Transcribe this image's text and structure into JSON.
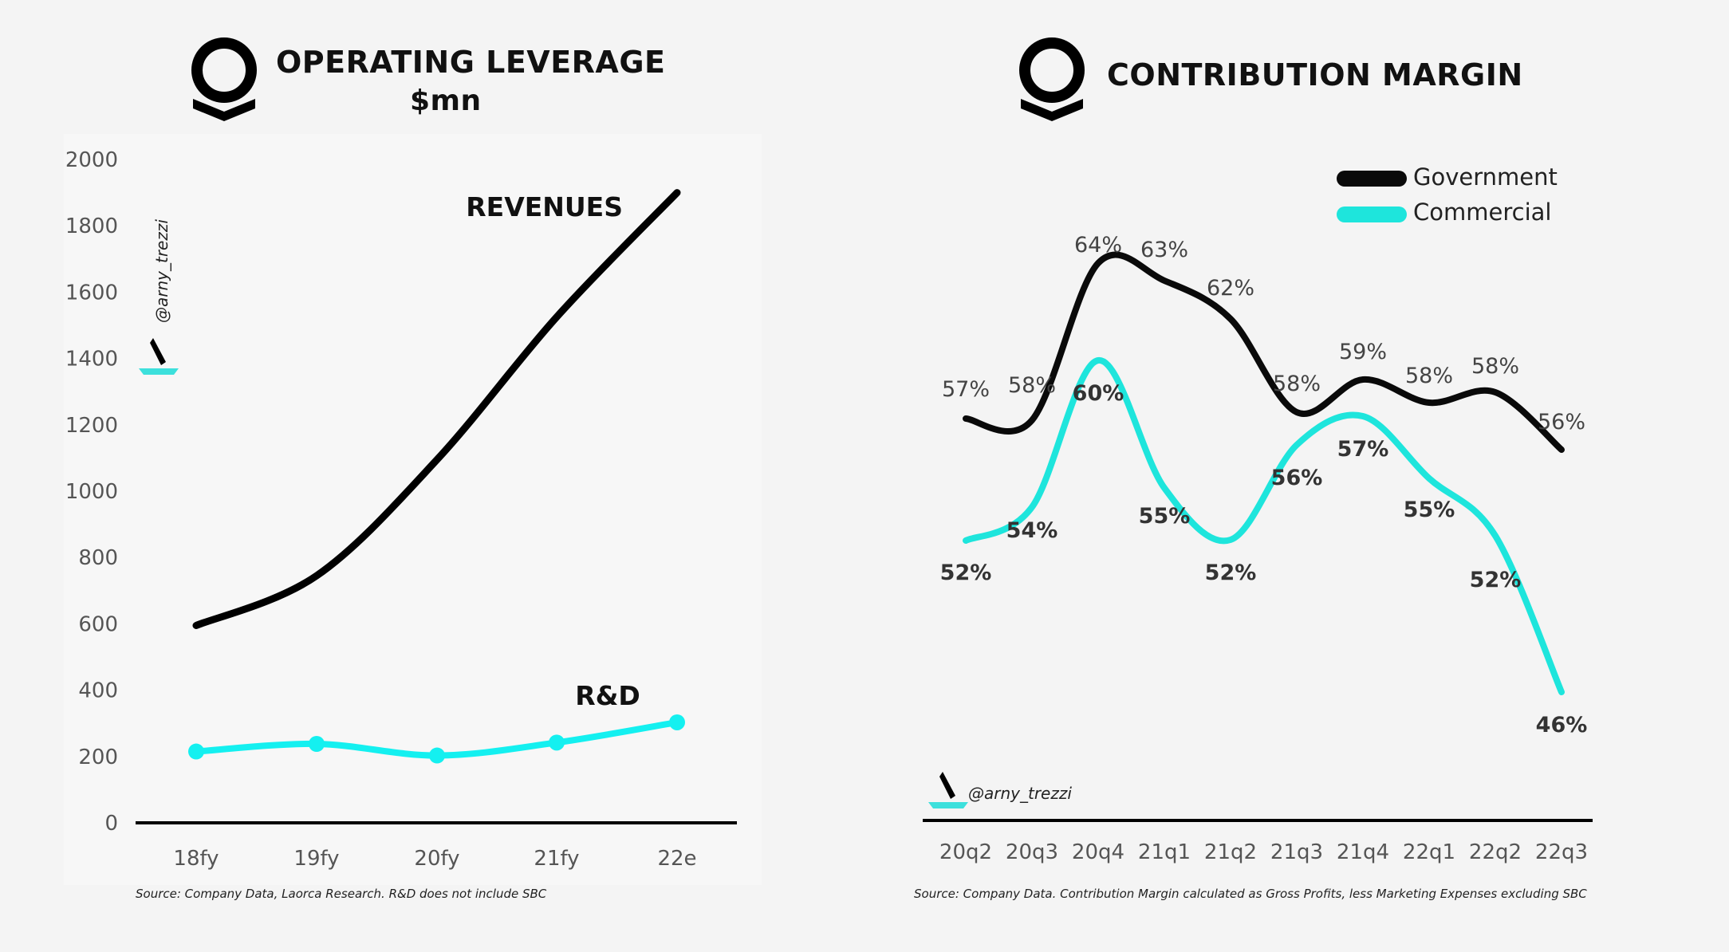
{
  "left": {
    "title": "OPERATING LEVERAGE",
    "subtitle": "$mn",
    "watermark": "@arny_trezzi",
    "source": "Source: Company Data, Laorca Research. R&D does not include SBC"
  },
  "right": {
    "title": "CONTRIBUTION MARGIN",
    "watermark": "@arny_trezzi",
    "source": "Source: Company Data. Contribution Margin calculated as Gross Profits, less Marketing Expenses excluding SBC"
  },
  "colors": {
    "government": "#0a0a0a",
    "commercial": "#1ee5dc",
    "rnd": "#14f0f0"
  },
  "chart_data": [
    {
      "type": "line",
      "title": "OPERATING LEVERAGE",
      "subtitle": "$mn",
      "categories": [
        "18fy",
        "19fy",
        "20fy",
        "21fy",
        "22e"
      ],
      "ylim": [
        0,
        2000
      ],
      "yticks": [
        0,
        200,
        400,
        600,
        800,
        1000,
        1200,
        1400,
        1600,
        1800,
        2000
      ],
      "grid": false,
      "series": [
        {
          "name": "REVENUES",
          "values": [
            595,
            745,
            1095,
            1525,
            1900
          ]
        },
        {
          "name": "R&D",
          "values": [
            215,
            238,
            203,
            242,
            303
          ]
        }
      ]
    },
    {
      "type": "line",
      "title": "CONTRIBUTION MARGIN",
      "categories": [
        "20q2",
        "20q3",
        "20q4",
        "21q1",
        "21q2",
        "21q3",
        "21q4",
        "22q1",
        "22q2",
        "22q3"
      ],
      "grid": false,
      "legend": "top-right",
      "series": [
        {
          "name": "Government",
          "values": [
            57,
            58,
            64,
            63,
            62,
            58,
            59,
            58,
            58,
            56
          ],
          "labels": [
            "57%",
            "58%",
            "64%",
            "63%",
            "62%",
            "58%",
            "59%",
            "58%",
            "58%",
            "56%"
          ]
        },
        {
          "name": "Commercial",
          "values": [
            52,
            54,
            60,
            55,
            52,
            56,
            57,
            55,
            52,
            46
          ],
          "labels": [
            "52%",
            "54%",
            "60%",
            "55%",
            "52%",
            "56%",
            "57%",
            "55%",
            "52%",
            "46%"
          ]
        }
      ]
    }
  ]
}
